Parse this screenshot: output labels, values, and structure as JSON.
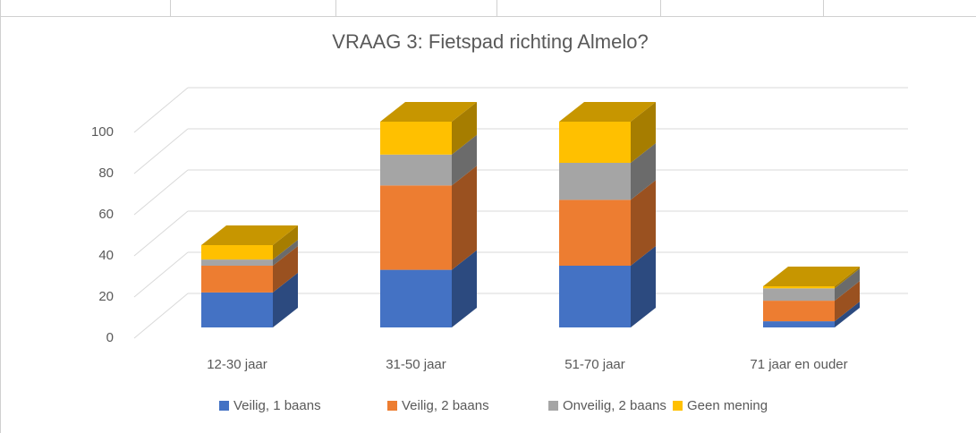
{
  "chart_data": {
    "type": "bar3d_stacked",
    "title": "VRAAG 3: Fietspad richting Almelo?",
    "categories": [
      "12-30 jaar",
      "31-50 jaar",
      "51-70 jaar",
      "71 jaar en ouder"
    ],
    "series": [
      {
        "name": "Veilig, 1 baans",
        "color": "#4472c4",
        "values": [
          17,
          28,
          30,
          3
        ]
      },
      {
        "name": "Veilig, 2 baans",
        "color": "#ed7d31",
        "values": [
          13,
          41,
          32,
          10
        ]
      },
      {
        "name": "Onveilig, 2 baans",
        "color": "#a5a5a5",
        "values": [
          3,
          15,
          18,
          6
        ]
      },
      {
        "name": "Geen mening",
        "color": "#ffc000",
        "values": [
          7,
          16,
          20,
          1
        ]
      }
    ],
    "ylim": [
      0,
      100
    ],
    "yticks": [
      0,
      20,
      40,
      60,
      80,
      100
    ],
    "grid": true,
    "legend": "bottom"
  }
}
